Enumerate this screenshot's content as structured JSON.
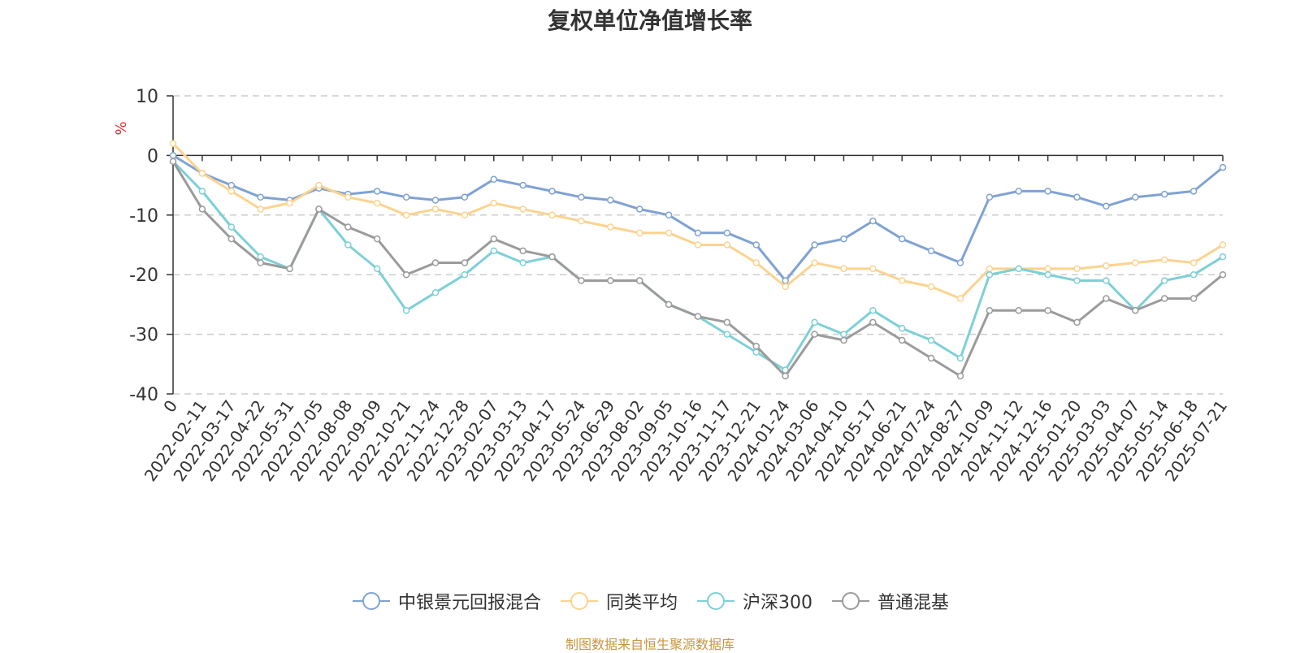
{
  "title": "复权单位净值增长率",
  "source": "制图数据来自恒生聚源数据库",
  "chart_data": {
    "type": "line",
    "title": "复权单位净值增长率",
    "ylabel": "%",
    "ylim": [
      -40,
      10
    ],
    "yticks": [
      10,
      0,
      -10,
      -20,
      -30,
      -40
    ],
    "grid": true,
    "legend_position": "bottom",
    "categories": [
      "0",
      "2022-02-11",
      "2022-03-17",
      "2022-04-22",
      "2022-05-31",
      "2022-07-05",
      "2022-08-08",
      "2022-09-09",
      "2022-10-21",
      "2022-11-24",
      "2022-12-28",
      "2023-02-07",
      "2023-03-13",
      "2023-04-17",
      "2023-05-24",
      "2023-06-29",
      "2023-08-02",
      "2023-09-05",
      "2023-10-16",
      "2023-11-17",
      "2023-12-21",
      "2024-01-24",
      "2024-03-06",
      "2024-04-10",
      "2024-05-17",
      "2024-06-21",
      "2024-07-24",
      "2024-08-27",
      "2024-10-09",
      "2024-11-12",
      "2024-12-16",
      "2025-01-20",
      "2025-03-03",
      "2025-04-07",
      "2025-05-14",
      "2025-06-18",
      "2025-07-21"
    ],
    "series": [
      {
        "name": "中银景元回报混合",
        "color": "#7fa2d4",
        "values": [
          0,
          -3,
          -5,
          -7,
          -7.5,
          -5.5,
          -6.5,
          -6,
          -7,
          -7.5,
          -7,
          -4,
          -5,
          -6,
          -7,
          -7.5,
          -9,
          -10,
          -13,
          -13,
          -15,
          -21,
          -15,
          -14,
          -11,
          -14,
          -16,
          -18,
          -7,
          -6,
          -6,
          -7,
          -8.5,
          -7,
          -6.5,
          -6,
          -2
        ]
      },
      {
        "name": "同类平均",
        "color": "#fbd38f",
        "values": [
          2,
          -3,
          -6,
          -9,
          -8,
          -5,
          -7,
          -8,
          -10,
          -9,
          -10,
          -8,
          -9,
          -10,
          -11,
          -12,
          -13,
          -13,
          -15,
          -15,
          -18,
          -22,
          -18,
          -19,
          -19,
          -21,
          -22,
          -24,
          -19,
          -19,
          -19,
          -19,
          -18.5,
          -18,
          -17.5,
          -18,
          -15
        ]
      },
      {
        "name": "沪深300",
        "color": "#7dd0d6",
        "values": [
          -1,
          -6,
          -12,
          -17,
          -19,
          -9,
          -15,
          -19,
          -26,
          -23,
          -20,
          -16,
          -18,
          -17,
          -21,
          -21,
          -21,
          -25,
          -27,
          -30,
          -33,
          -36,
          -28,
          -30,
          -26,
          -29,
          -31,
          -34,
          -20,
          -19,
          -20,
          -21,
          -21,
          -26,
          -21,
          -20,
          -17
        ]
      },
      {
        "name": "普通混基",
        "color": "#9b9b9b",
        "values": [
          -1,
          -9,
          -14,
          -18,
          -19,
          -9,
          -12,
          -14,
          -20,
          -18,
          -18,
          -14,
          -16,
          -17,
          -21,
          -21,
          -21,
          -25,
          -27,
          -28,
          -32,
          -37,
          -30,
          -31,
          -28,
          -31,
          -34,
          -37,
          -26,
          -26,
          -26,
          -28,
          -24,
          -26,
          -24,
          -24,
          -20
        ]
      }
    ]
  }
}
